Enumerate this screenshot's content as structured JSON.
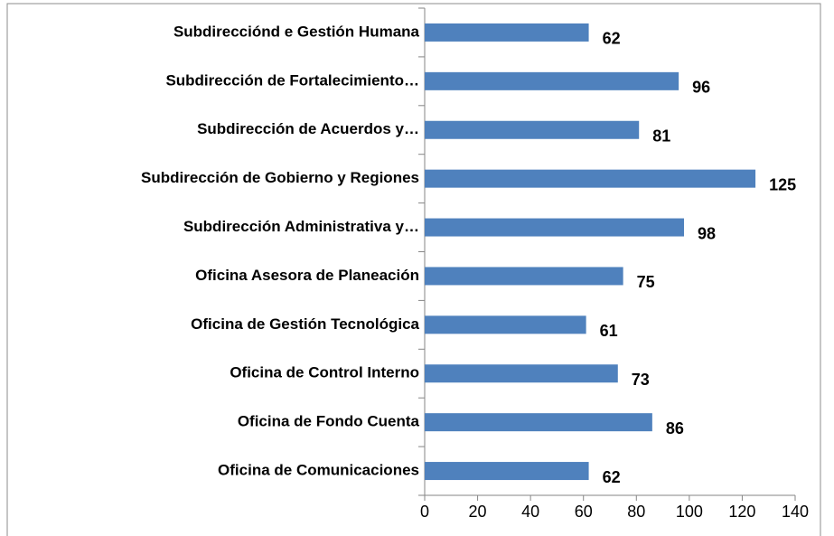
{
  "chart_data": {
    "type": "bar",
    "orientation": "horizontal",
    "categories": [
      "Subdirecciónd e Gestión Humana",
      "Subdirección de Fortalecimiento…",
      "Subdirección de Acuerdos y…",
      "Subdirección de Gobierno y Regiones",
      "Subdirección Administrativa y…",
      "Oficina Asesora de Planeación",
      "Oficina de Gestión Tecnológica",
      "Oficina de Control Interno",
      "Oficina de Fondo Cuenta",
      "Oficina de Comunicaciones"
    ],
    "values": [
      62,
      96,
      81,
      125,
      98,
      75,
      61,
      73,
      86,
      62
    ],
    "color": "#4f81bd",
    "xlim": [
      0,
      140
    ],
    "xticks": [
      0,
      20,
      40,
      60,
      80,
      100,
      120,
      140
    ],
    "grid": false
  }
}
